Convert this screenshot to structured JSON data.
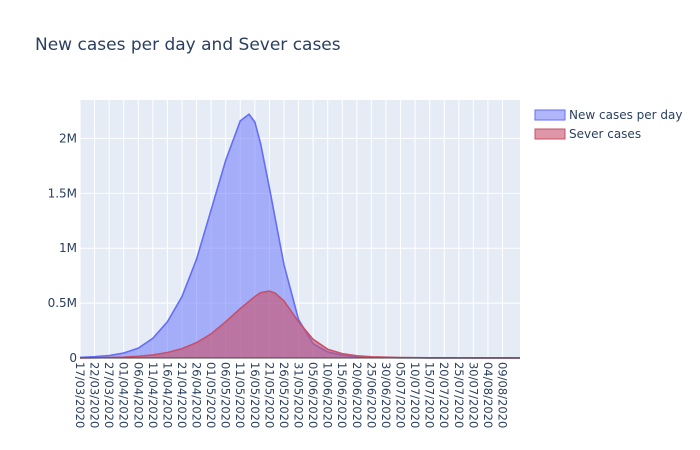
{
  "chart_data": {
    "type": "area",
    "title": "New cases per day and Sever cases",
    "xlabel": "",
    "ylabel": "",
    "x_range": [
      "17/03/2020",
      "15/08/2020"
    ],
    "ylim": [
      0,
      2350000
    ],
    "y_ticks": [
      0,
      500000,
      1000000,
      1500000,
      2000000
    ],
    "y_tick_labels": [
      "0",
      "0.5M",
      "1M",
      "1.5M",
      "2M"
    ],
    "x_tick_labels": [
      "17/03/2020",
      "22/03/2020",
      "27/03/2020",
      "01/04/2020",
      "06/04/2020",
      "11/04/2020",
      "16/04/2020",
      "21/04/2020",
      "26/04/2020",
      "01/05/2020",
      "06/05/2020",
      "11/05/2020",
      "16/05/2020",
      "21/05/2020",
      "26/05/2020",
      "31/05/2020",
      "05/06/2020",
      "10/06/2020",
      "15/06/2020",
      "20/06/2020",
      "25/06/2020",
      "30/06/2020",
      "05/07/2020",
      "10/07/2020",
      "15/07/2020",
      "20/07/2020",
      "25/07/2020",
      "30/07/2020",
      "04/08/2020",
      "09/08/2020"
    ],
    "grid": true,
    "legend_position": "top-right",
    "series": [
      {
        "name": "New cases per day",
        "color": "#636efa",
        "x": [
          "17/03/2020",
          "22/03/2020",
          "27/03/2020",
          "01/04/2020",
          "06/04/2020",
          "11/04/2020",
          "16/04/2020",
          "21/04/2020",
          "26/04/2020",
          "01/05/2020",
          "06/05/2020",
          "11/05/2020",
          "14/05/2020",
          "16/05/2020",
          "18/05/2020",
          "21/05/2020",
          "26/05/2020",
          "31/05/2020",
          "05/06/2020",
          "10/06/2020",
          "15/06/2020",
          "20/06/2020",
          "25/06/2020",
          "30/06/2020",
          "05/07/2020",
          "10/07/2020",
          "15/07/2020",
          "20/07/2020",
          "25/07/2020",
          "30/07/2020",
          "04/08/2020",
          "09/08/2020",
          "15/08/2020"
        ],
        "values": [
          5000,
          12000,
          22000,
          45000,
          90000,
          180000,
          330000,
          560000,
          900000,
          1350000,
          1800000,
          2160000,
          2220000,
          2150000,
          1950000,
          1550000,
          850000,
          350000,
          130000,
          55000,
          25000,
          12000,
          6000,
          3500,
          2000,
          1200,
          800,
          500,
          350,
          250,
          200,
          150,
          100
        ]
      },
      {
        "name": "Sever cases",
        "color": "#c9506b",
        "x": [
          "17/03/2020",
          "22/03/2020",
          "27/03/2020",
          "01/04/2020",
          "06/04/2020",
          "11/04/2020",
          "16/04/2020",
          "21/04/2020",
          "26/04/2020",
          "01/05/2020",
          "06/05/2020",
          "11/05/2020",
          "16/05/2020",
          "18/05/2020",
          "21/05/2020",
          "23/05/2020",
          "26/05/2020",
          "31/05/2020",
          "05/06/2020",
          "10/06/2020",
          "15/06/2020",
          "20/06/2020",
          "25/06/2020",
          "30/06/2020",
          "05/07/2020",
          "10/07/2020",
          "15/07/2020",
          "20/07/2020",
          "25/07/2020",
          "30/07/2020",
          "04/08/2020",
          "09/08/2020",
          "15/08/2020"
        ],
        "values": [
          1000,
          2000,
          4000,
          8000,
          15000,
          28000,
          50000,
          85000,
          140000,
          220000,
          330000,
          450000,
          560000,
          595000,
          610000,
          590000,
          520000,
          330000,
          170000,
          80000,
          40000,
          20000,
          11000,
          7000,
          4500,
          3000,
          2000,
          1500,
          1100,
          800,
          600,
          500,
          400
        ]
      }
    ]
  }
}
